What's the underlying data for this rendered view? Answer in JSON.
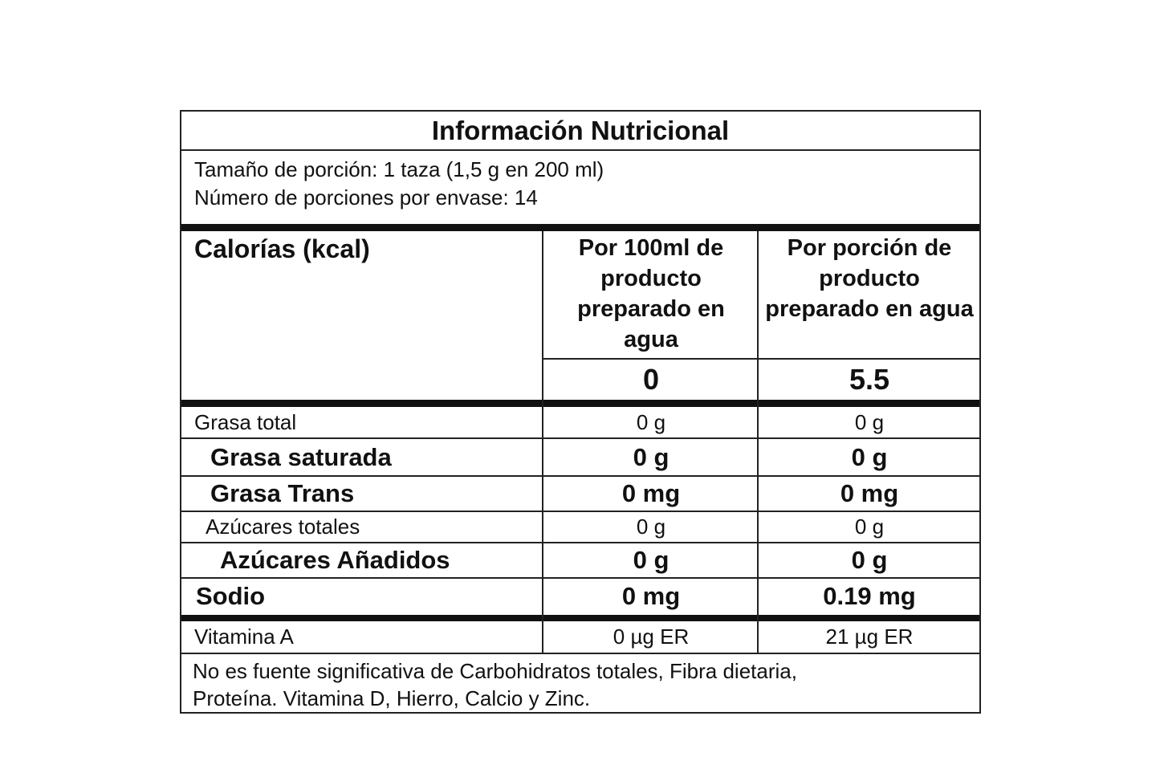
{
  "title": "Información Nutricional",
  "serving": [
    "Tamaño de porción: 1 taza (1,5 g en 200 ml)",
    "Número de porciones por envase: 14"
  ],
  "header": {
    "label": "Calorías (kcal)",
    "columns": [
      "Por 100ml de producto preparado en agua",
      "Por porción de producto preparado en agua"
    ],
    "calories": [
      0,
      5.5
    ]
  },
  "rows": [
    {
      "label": "Grasa total",
      "values": [
        "0 g",
        "0 g"
      ]
    },
    {
      "label": "Grasa saturada",
      "values": [
        "0 g",
        "0 g"
      ]
    },
    {
      "label": "Grasa Trans",
      "values": [
        "0 mg",
        "0 mg"
      ]
    },
    {
      "label": "Azúcares totales",
      "values": [
        "0 g",
        "0 g"
      ]
    },
    {
      "label": "Azúcares Añadidos",
      "values": [
        "0 g",
        "0 g"
      ]
    },
    {
      "label": "Sodio",
      "values": [
        "0 mg",
        "0.19 mg"
      ]
    },
    {
      "label": "Vitamina A",
      "values": [
        "0 µg ER",
        "21 µg ER"
      ]
    }
  ],
  "footnote": [
    "No es fuente significativa de Carbohidratos totales, Fibra dietaria,",
    "Proteína. Vitamina D, Hierro, Calcio y Zinc."
  ]
}
